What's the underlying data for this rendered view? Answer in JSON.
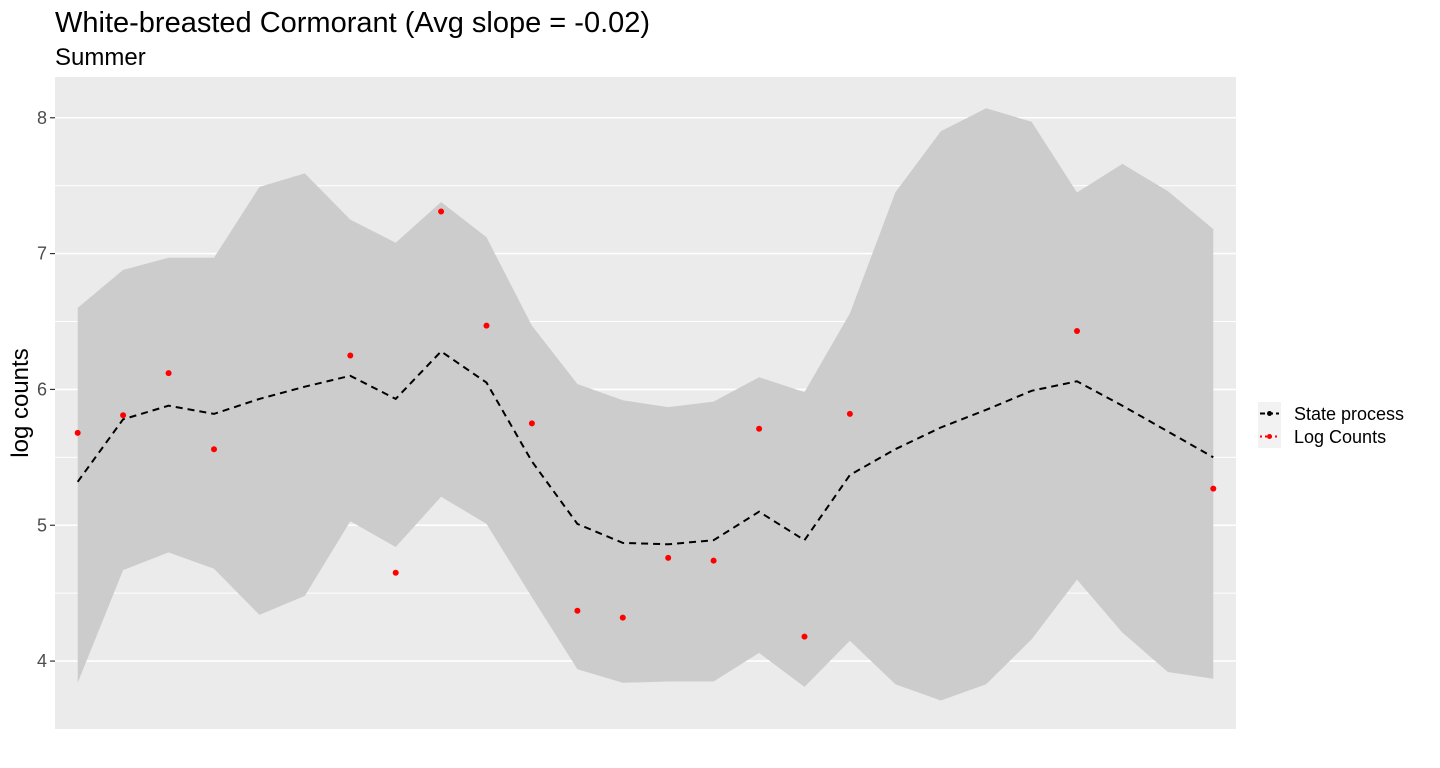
{
  "chart_data": {
    "type": "line",
    "title": "White-breasted Cormorant (Avg slope = -0.02)",
    "subtitle": "Summer",
    "ylabel": "log counts",
    "xlabel": "",
    "ylim": [
      3.5,
      8.3
    ],
    "xlim": [
      0.5,
      26.5
    ],
    "y_ticks": [
      4,
      5,
      6,
      7,
      8
    ],
    "grid": true,
    "legend_position": "right",
    "x": [
      1,
      2,
      3,
      4,
      5,
      6,
      7,
      8,
      9,
      10,
      11,
      12,
      13,
      14,
      15,
      16,
      17,
      18,
      19,
      20,
      21,
      22,
      23,
      24,
      25,
      26
    ],
    "series": [
      {
        "name": "State process",
        "style": "dashed",
        "color": "#000000",
        "values": [
          5.32,
          5.78,
          5.88,
          5.82,
          5.93,
          6.02,
          6.1,
          5.93,
          6.28,
          6.05,
          5.47,
          5.01,
          4.87,
          4.86,
          4.89,
          5.1,
          4.89,
          5.37,
          5.56,
          5.72,
          5.85,
          5.99,
          6.06,
          5.88,
          5.69,
          5.5
        ]
      },
      {
        "name": "Log Counts",
        "style": "points",
        "color": "#ff0000",
        "points": [
          [
            1,
            5.68
          ],
          [
            2,
            5.81
          ],
          [
            3,
            6.12
          ],
          [
            4,
            5.56
          ],
          [
            7,
            6.25
          ],
          [
            8,
            4.65
          ],
          [
            9,
            7.31
          ],
          [
            10,
            6.47
          ],
          [
            11,
            5.75
          ],
          [
            12,
            4.37
          ],
          [
            13,
            4.32
          ],
          [
            14,
            4.76
          ],
          [
            15,
            4.74
          ],
          [
            16,
            5.71
          ],
          [
            17,
            4.18
          ],
          [
            18,
            5.82
          ],
          [
            23,
            6.43
          ],
          [
            26,
            5.27
          ]
        ]
      }
    ],
    "confidence_band": {
      "color": "#cccccc",
      "upper": [
        6.6,
        6.88,
        6.97,
        6.97,
        7.49,
        7.59,
        7.25,
        7.08,
        7.38,
        7.12,
        6.47,
        6.04,
        5.92,
        5.87,
        5.91,
        6.09,
        5.98,
        6.56,
        7.45,
        7.9,
        8.07,
        7.97,
        7.45,
        7.66,
        7.46,
        7.18
      ],
      "lower": [
        3.84,
        4.67,
        4.8,
        4.68,
        4.34,
        4.48,
        5.03,
        4.84,
        5.21,
        5.01,
        4.47,
        3.94,
        3.84,
        3.85,
        3.85,
        4.06,
        3.81,
        4.15,
        3.83,
        3.71,
        3.83,
        4.16,
        4.6,
        4.21,
        3.92,
        3.87
      ]
    }
  }
}
